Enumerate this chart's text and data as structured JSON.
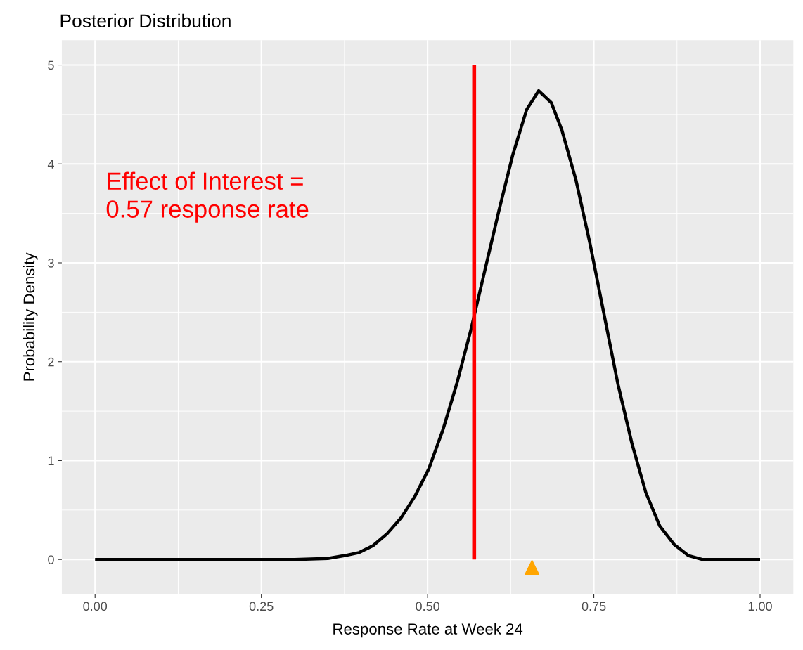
{
  "chart_data": {
    "type": "line",
    "title": "Posterior Distribution",
    "xlabel": "Response Rate at Week 24",
    "ylabel": "Probability Density",
    "xlim": [
      -0.05,
      1.05
    ],
    "ylim": [
      -0.35,
      5.25
    ],
    "xticks": [
      {
        "value": 0,
        "label": "0.00"
      },
      {
        "value": 0.25,
        "label": "0.25"
      },
      {
        "value": 0.5,
        "label": "0.50"
      },
      {
        "value": 0.75,
        "label": "0.75"
      },
      {
        "value": 1,
        "label": "1.00"
      }
    ],
    "yticks": [
      0,
      1,
      2,
      3,
      4,
      5
    ],
    "grid": true,
    "legend": false,
    "annotations": [
      "Effect of Interest =\n0.57 response rate"
    ],
    "series": [
      {
        "color": "#000000",
        "marker": "none",
        "x": [
          0,
          0.1,
          0.2,
          0.3,
          0.35,
          0.376,
          0.397,
          0.418,
          0.439,
          0.46,
          0.481,
          0.502,
          0.523,
          0.544,
          0.565,
          0.586,
          0.607,
          0.628,
          0.649,
          0.667,
          0.686,
          0.702,
          0.723,
          0.744,
          0.765,
          0.786,
          0.807,
          0.828,
          0.849,
          0.871,
          0.892,
          0.913,
          0.95,
          1.0
        ],
        "values": [
          0,
          0,
          0,
          0,
          0.01,
          0.04,
          0.07,
          0.14,
          0.26,
          0.42,
          0.64,
          0.92,
          1.31,
          1.78,
          2.32,
          2.92,
          3.52,
          4.09,
          4.55,
          4.74,
          4.62,
          4.34,
          3.84,
          3.2,
          2.49,
          1.78,
          1.18,
          0.68,
          0.34,
          0.15,
          0.04,
          0,
          0,
          0
        ]
      },
      {
        "color": "#ff0000",
        "marker": "none",
        "x": [
          0.57,
          0.57
        ],
        "values": [
          0,
          5
        ]
      },
      {
        "type": "scatter",
        "color": "#ffa500",
        "marker": "triangle",
        "x": [
          0.657
        ],
        "values": [
          -0.08
        ]
      }
    ]
  }
}
